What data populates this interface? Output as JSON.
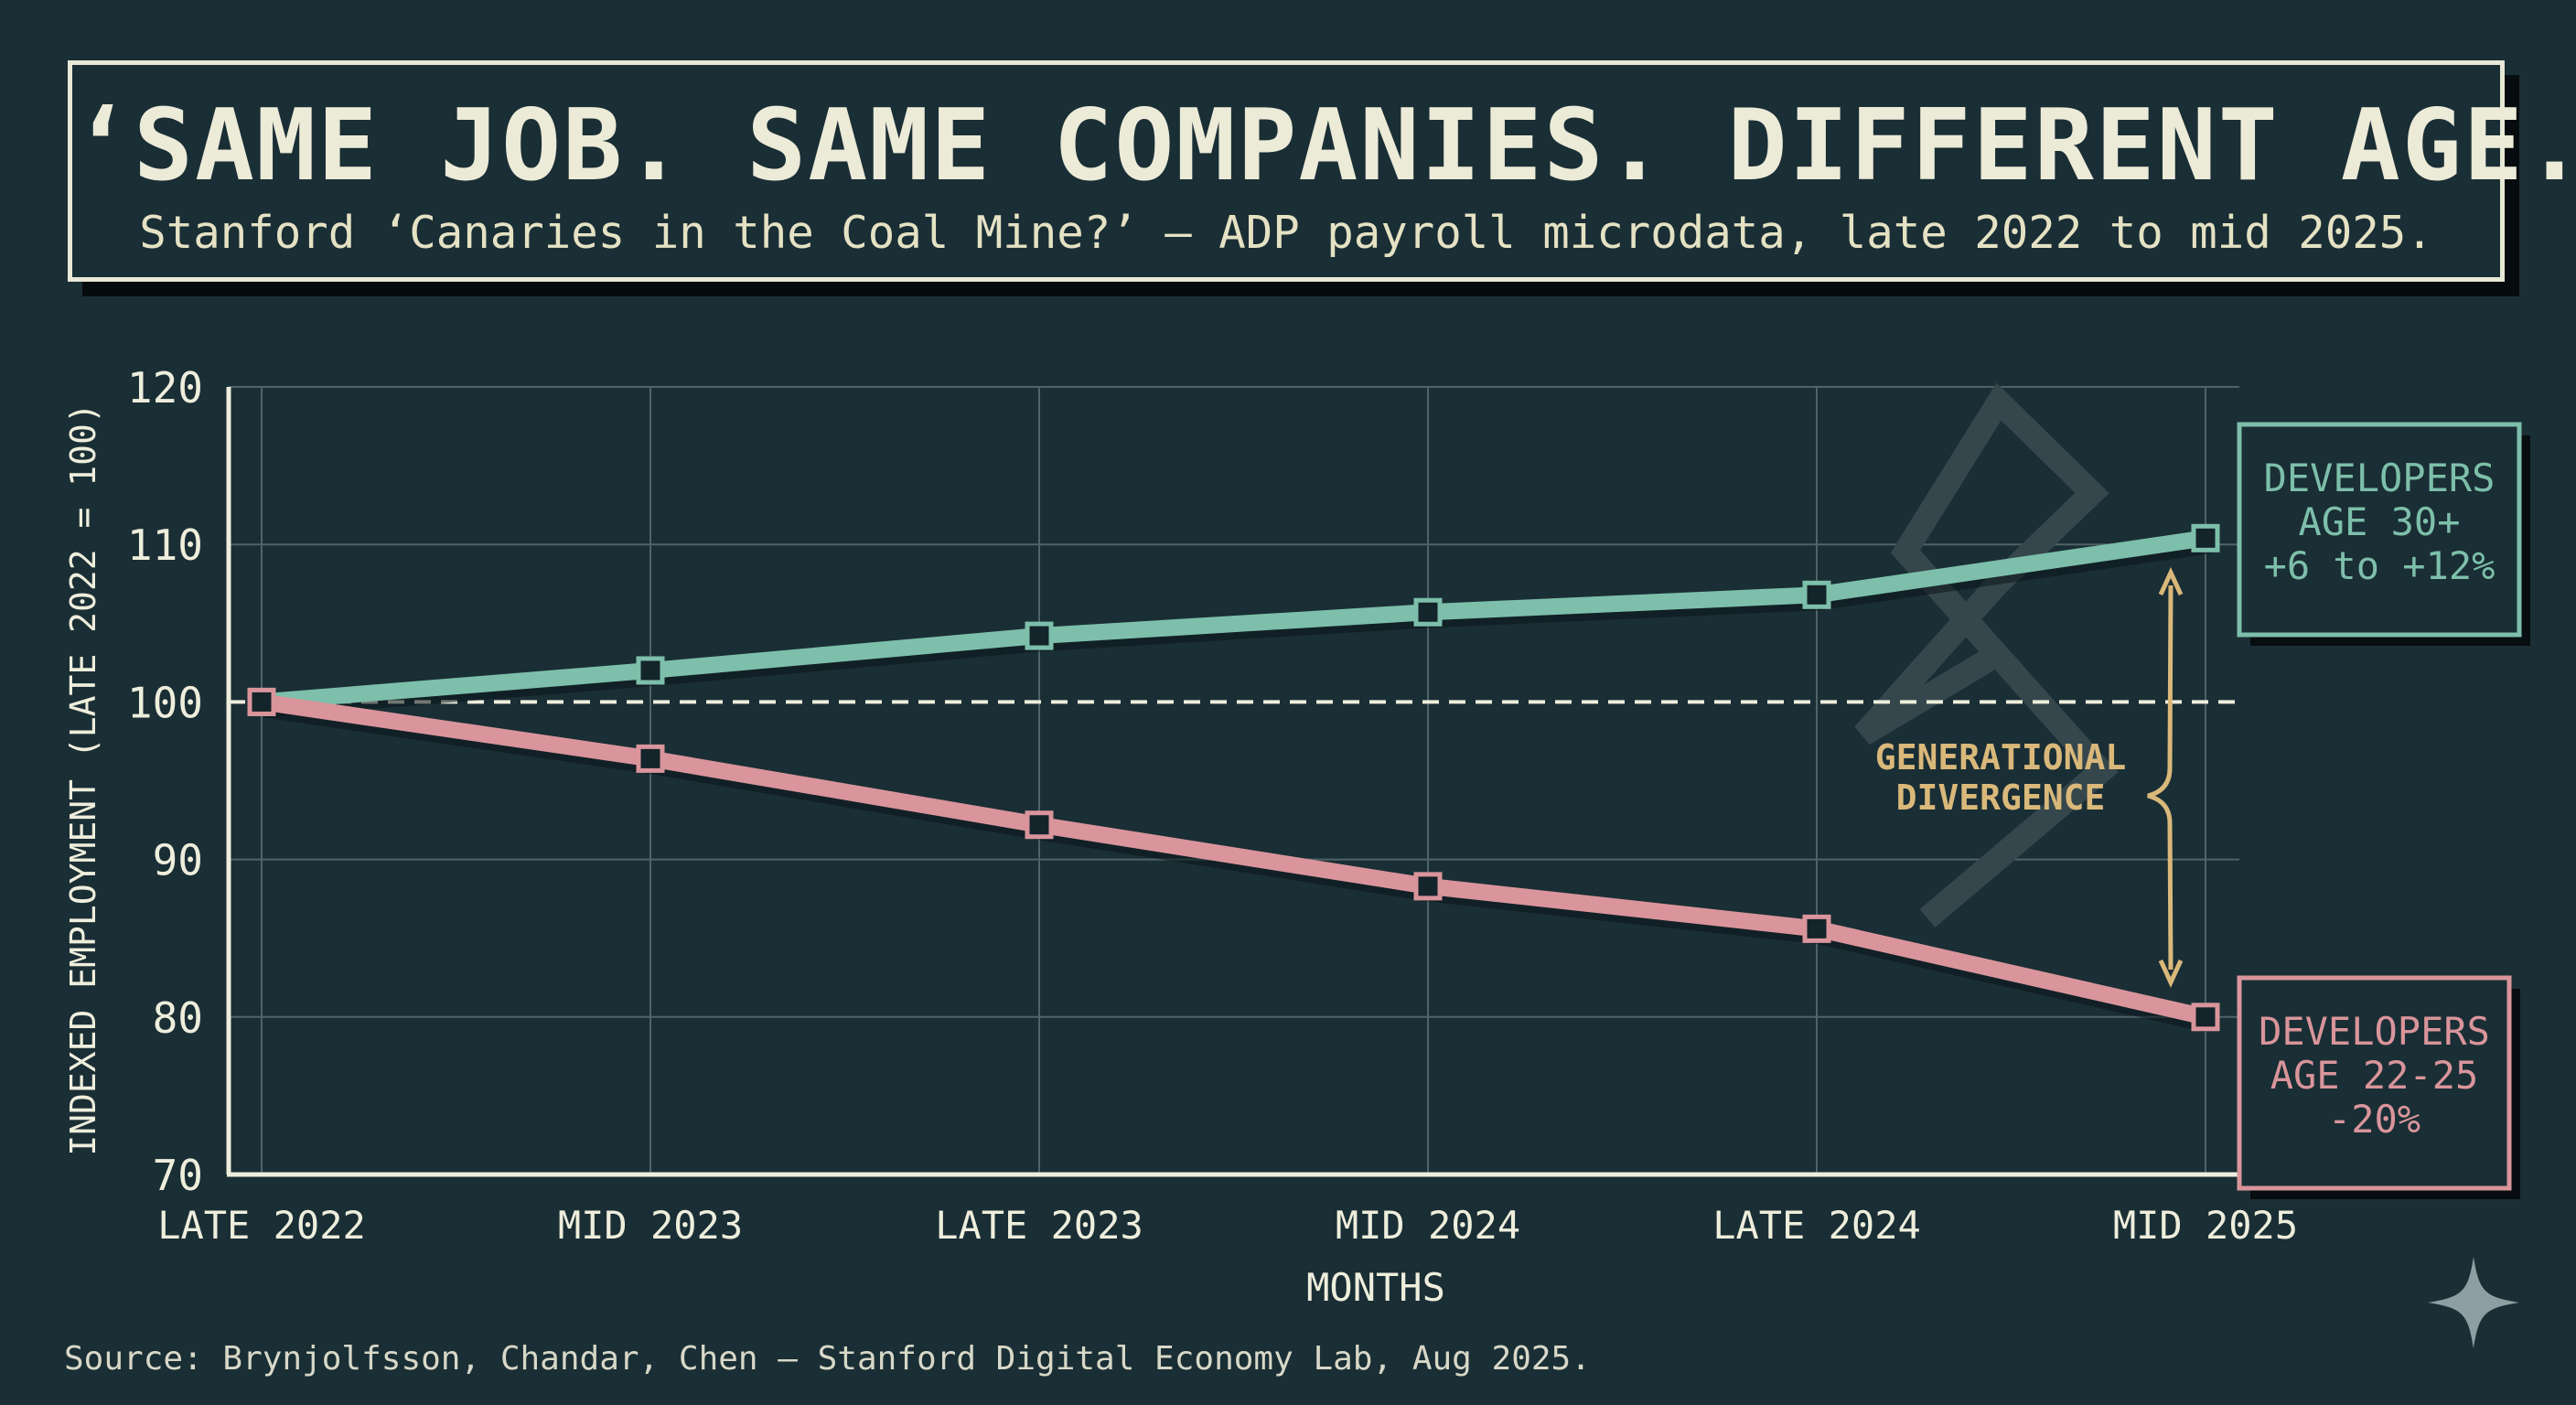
{
  "header": {
    "title": "‘SAME JOB. SAME COMPANIES. DIFFERENT AGE.’",
    "subtitle": "Stanford ‘Canaries in the Coal Mine?’ — ADP payroll microdata, late 2022 to mid 2025."
  },
  "footer": {
    "source": "Source: Brynjolfsson, Chandar, Chen — Stanford Digital Economy Lab, Aug 2025."
  },
  "chart_data": {
    "type": "line",
    "title": "‘SAME JOB. SAME COMPANIES. DIFFERENT AGE.’",
    "subtitle": "Stanford ‘Canaries in the Coal Mine?’ — ADP payroll microdata, late 2022 to mid 2025.",
    "xlabel": "MONTHS",
    "ylabel": "INDEXED EMPLOYMENT (LATE 2022 = 100)",
    "categories": [
      "LATE 2022",
      "MID 2023",
      "LATE 2023",
      "MID 2024",
      "LATE 2024",
      "MID 2025"
    ],
    "ylim": [
      70,
      120
    ],
    "yticks": [
      70,
      80,
      90,
      100,
      110,
      120
    ],
    "grid": true,
    "baseline": 100,
    "series": [
      {
        "name": "DEVELOPERS AGE 30+",
        "values": [
          100,
          102,
          104.2,
          105.7,
          106.8,
          110.4
        ],
        "color": "#7dbfaa",
        "label_lines": [
          "DEVELOPERS",
          "AGE 30+",
          "+6 to +12%"
        ]
      },
      {
        "name": "DEVELOPERS AGE 22-25",
        "values": [
          100,
          96.4,
          92.2,
          88.3,
          85.6,
          80
        ],
        "color": "#d9959b",
        "label_lines": [
          "DEVELOPERS",
          "AGE 22-25",
          "-20%"
        ]
      }
    ],
    "annotation": {
      "lines": [
        "GENERATIONAL",
        "DIVERGENCE"
      ],
      "color": "#d9b87a"
    }
  }
}
